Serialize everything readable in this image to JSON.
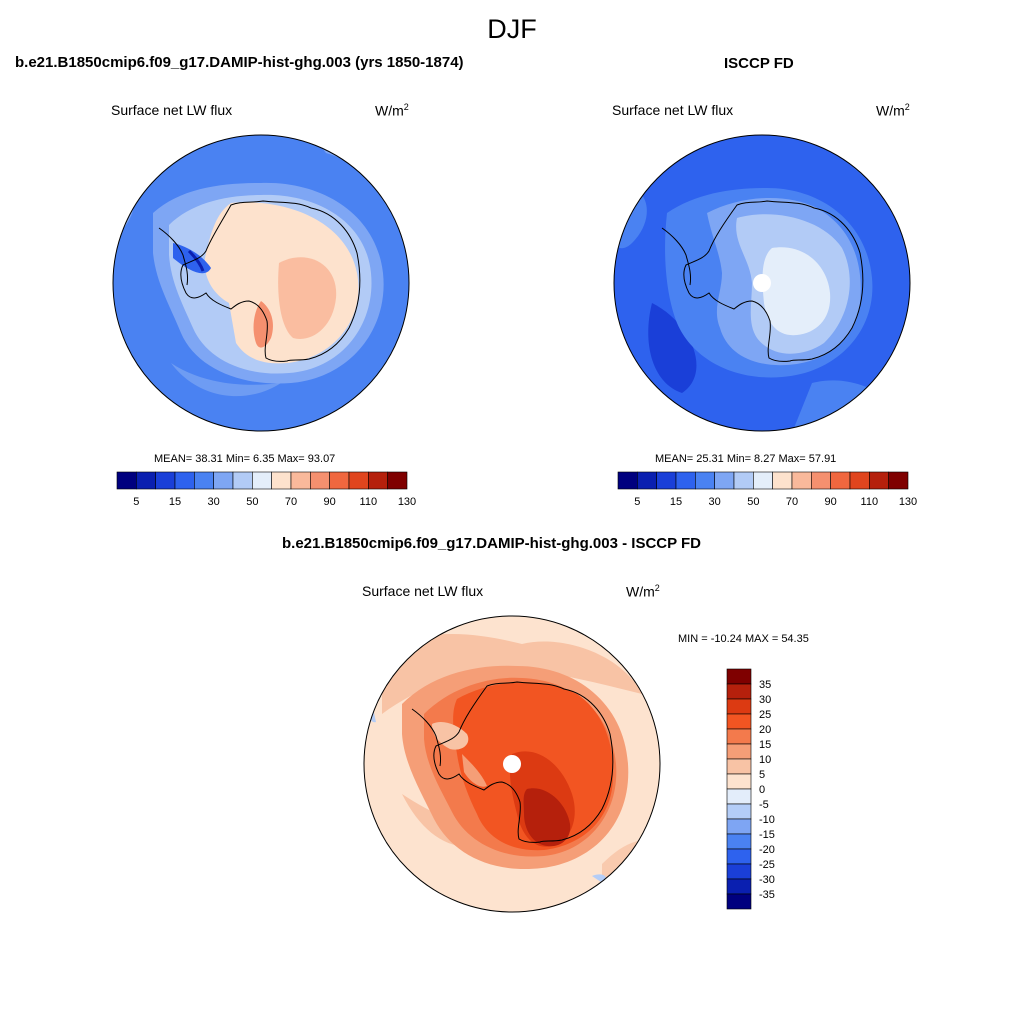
{
  "main_title": "DJF",
  "panels": [
    {
      "title": "b.e21.B1850cmip6.f09_g17.DAMIP-hist-ghg.003 (yrs 1850-1874)",
      "variable": "Surface net LW flux",
      "units_base": "W/m",
      "units_exp": "2",
      "stats": "MEAN=  38.31  Min=   6.35  Max=  93.07"
    },
    {
      "title": "ISCCP FD",
      "variable": "Surface net LW flux",
      "units_base": "W/m",
      "units_exp": "2",
      "stats": "MEAN=  25.31  Min=   8.27  Max=  57.91"
    },
    {
      "title": "b.e21.B1850cmip6.f09_g17.DAMIP-hist-ghg.003 - ISCCP FD",
      "variable": "Surface net LW flux",
      "units_base": "W/m",
      "units_exp": "2",
      "stats": "MIN = -10.24 MAX =  54.35"
    }
  ],
  "colorbar_abs": {
    "colors": [
      "#00007f",
      "#0a1fb0",
      "#1a3fd8",
      "#2e62ee",
      "#4a82f2",
      "#7ea6f4",
      "#b2cbf6",
      "#e4eefa",
      "#fde2cd",
      "#f9b99b",
      "#f5906f",
      "#f0673f",
      "#e0451e",
      "#b5200c",
      "#7f0000"
    ],
    "labels": [
      "5",
      "15",
      "30",
      "50",
      "70",
      "90",
      "110",
      "130"
    ]
  },
  "colorbar_diff": {
    "colors": [
      "#7f0000",
      "#b5200c",
      "#dc3a12",
      "#f25522",
      "#f37a4c",
      "#f59e77",
      "#f8c3a5",
      "#fde3cf",
      "#e3edfa",
      "#b4cdf7",
      "#7ea5f3",
      "#4a82f2",
      "#2e62ee",
      "#1a3fd8",
      "#0a1fb0",
      "#00007f"
    ],
    "labels": [
      "35",
      "30",
      "25",
      "20",
      "15",
      "10",
      "5",
      "0",
      "-5",
      "-10",
      "-15",
      "-20",
      "-25",
      "-30",
      "-35"
    ]
  }
}
